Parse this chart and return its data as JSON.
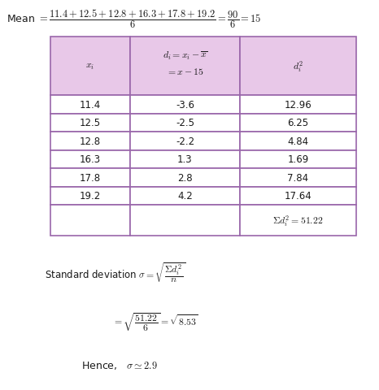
{
  "bg_color": "#ffffff",
  "table_header_color": "#e8c8e8",
  "table_border_color": "#9966aa",
  "text_color": "#1a1a1a",
  "rows": [
    [
      "11.4",
      "-3.6",
      "12.96"
    ],
    [
      "12.5",
      "-2.5",
      "6.25"
    ],
    [
      "12.8",
      "-2.2",
      "4.84"
    ],
    [
      "16.3",
      "1.3",
      "1.69"
    ],
    [
      "17.8",
      "2.8",
      "7.84"
    ],
    [
      "19.2",
      "4.2",
      "17.64"
    ]
  ],
  "figwidth": 4.66,
  "figheight": 4.81,
  "dpi": 100
}
